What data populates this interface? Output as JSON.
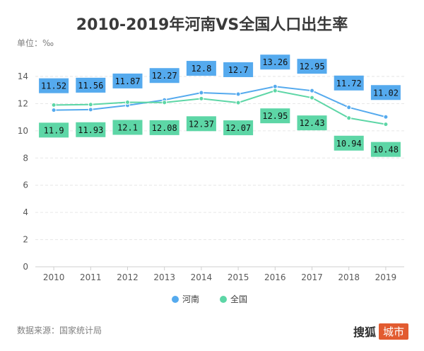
{
  "title": "2010-2019年河南VS全国人口出生率",
  "unit_label": "单位：‰",
  "source": "数据来源：国家统计局",
  "logo": {
    "text": "搜狐",
    "badge": "城市"
  },
  "colors": {
    "henan": "#55aaee",
    "national": "#5dd6a6",
    "grid": "#e6e6e6",
    "axis": "#cfcfcf"
  },
  "chart_data": {
    "type": "line",
    "title": "2010-2019年河南VS全国人口出生率",
    "ylabel": "单位：‰",
    "xlabel": "",
    "categories": [
      "2010",
      "2011",
      "2012",
      "2013",
      "2014",
      "2015",
      "2016",
      "2017",
      "2018",
      "2019"
    ],
    "yticks": [
      "0",
      "2",
      "4",
      "6",
      "8",
      "10",
      "12",
      "14"
    ],
    "ylim": [
      0,
      14
    ],
    "grid": true,
    "legend": "bottom-center",
    "series": [
      {
        "name": "河南",
        "values": [
          11.52,
          11.56,
          11.87,
          12.27,
          12.8,
          12.7,
          13.26,
          12.95,
          11.72,
          11.02
        ],
        "labels": [
          "11.52",
          "11.56",
          "11.87",
          "12.27",
          "12.8",
          "12.7",
          "13.26",
          "12.95",
          "11.72",
          "11.02"
        ]
      },
      {
        "name": "全国",
        "values": [
          11.9,
          11.93,
          12.1,
          12.08,
          12.37,
          12.07,
          12.95,
          12.43,
          10.94,
          10.48
        ],
        "labels": [
          "11.9",
          "11.93",
          "12.1",
          "12.08",
          "12.37",
          "12.07",
          "12.95",
          "12.43",
          "10.94",
          "10.48"
        ]
      }
    ]
  }
}
